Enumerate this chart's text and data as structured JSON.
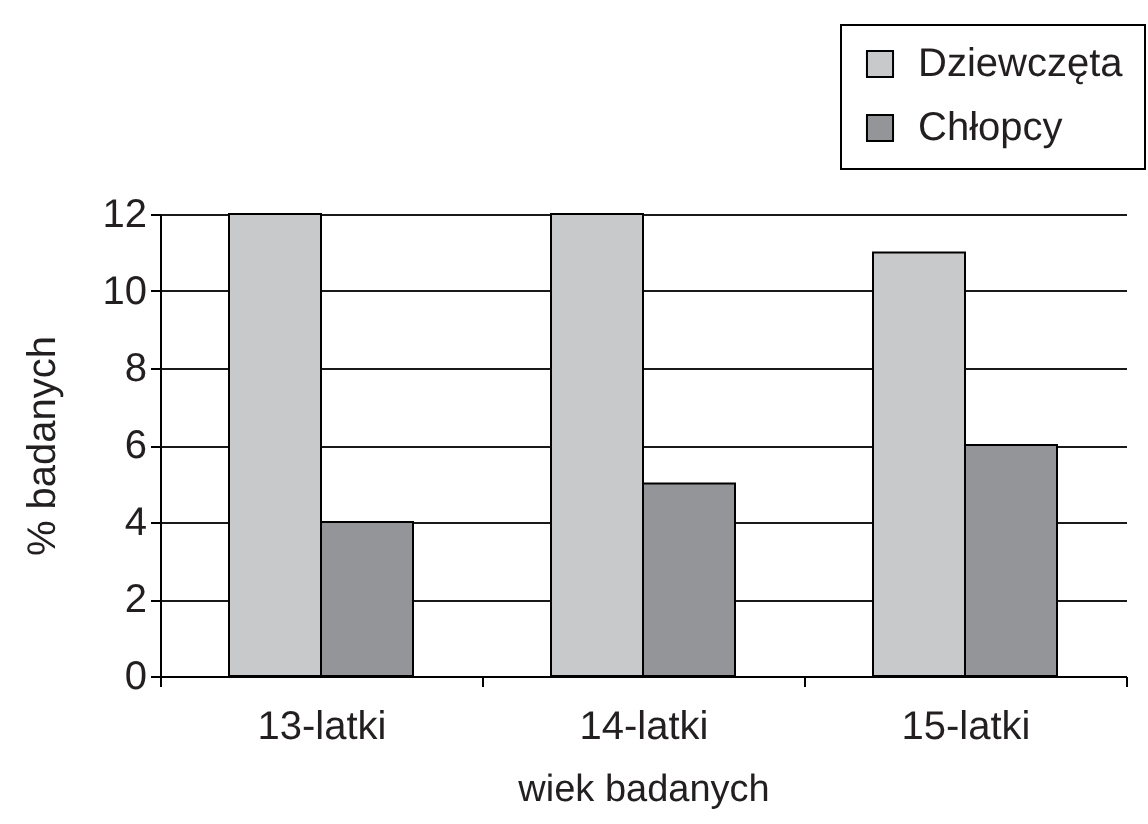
{
  "chart_data": {
    "type": "bar",
    "xlabel": "wiek badanych",
    "ylabel": "% badanych",
    "categories": [
      "13-latki",
      "14-latki",
      "15-latki"
    ],
    "series": [
      {
        "name": "Dziewczęta",
        "color": "#c8c9cb",
        "values": [
          12,
          12,
          11
        ]
      },
      {
        "name": "Chłopcy",
        "color": "#939598",
        "values": [
          4,
          5,
          6
        ]
      }
    ],
    "ylim": [
      0,
      12
    ],
    "yticks": [
      0,
      2,
      4,
      6,
      8,
      10,
      12
    ],
    "grid": "y",
    "legend": "top right"
  }
}
